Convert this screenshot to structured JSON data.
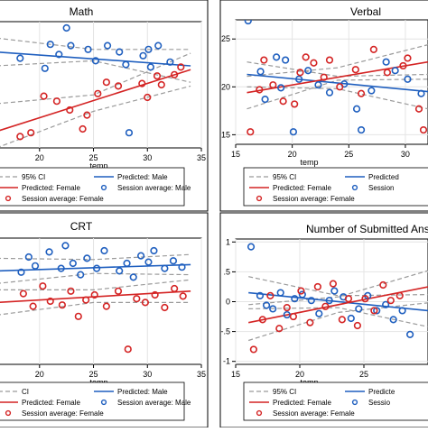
{
  "colors": {
    "male": "#1f5fbf",
    "female": "#d42424",
    "ci": "#9a9a9a",
    "frame": "#000000",
    "background": "#ffffff"
  },
  "chart_data": [
    {
      "id": "math",
      "type": "scatter",
      "title": "Math",
      "xlabel": "temp",
      "x_ticks": [
        20,
        25,
        30,
        35
      ],
      "y_ticks": [],
      "xlim": [
        16,
        35
      ],
      "ylim": [
        0,
        10
      ],
      "grid": true,
      "legend": {
        "placement": "bottom",
        "entries": [
          {
            "label": "95% CI",
            "kind": "ci"
          },
          {
            "label": "Predicted: Male",
            "kind": "male-line"
          },
          {
            "label": "Predicted: Female",
            "kind": "female-line"
          },
          {
            "label": "Session average: Male",
            "kind": "male-dot"
          },
          {
            "label": "Session average: Female",
            "kind": "female-dot"
          }
        ]
      },
      "series": [
        {
          "group": "male",
          "fit": [
            [
              16,
              7.6
            ],
            [
              34,
              6.5
            ]
          ],
          "ci_upper": [
            [
              16,
              8.7
            ],
            [
              25,
              7.8
            ],
            [
              34,
              7.8
            ]
          ],
          "ci_lower": [
            [
              16,
              6.5
            ],
            [
              25,
              6.9
            ],
            [
              34,
              5.2
            ]
          ],
          "points": [
            [
              18.2,
              7.1
            ],
            [
              20.5,
              6.3
            ],
            [
              21.0,
              8.2
            ],
            [
              21.8,
              7.4
            ],
            [
              22.5,
              9.5
            ],
            [
              22.9,
              8.1
            ],
            [
              24.5,
              7.8
            ],
            [
              25.2,
              6.9
            ],
            [
              26.3,
              8.1
            ],
            [
              27.4,
              7.6
            ],
            [
              28.0,
              6.6
            ],
            [
              28.3,
              1.2
            ],
            [
              29.6,
              7.3
            ],
            [
              30.1,
              7.8
            ],
            [
              30.3,
              6.4
            ],
            [
              31.0,
              8.1
            ],
            [
              32.1,
              6.8
            ]
          ]
        },
        {
          "group": "female",
          "fit": [
            [
              16,
              1.3
            ],
            [
              34,
              6.2
            ]
          ],
          "ci_upper": [
            [
              16,
              3.5
            ],
            [
              25,
              4.2
            ],
            [
              34,
              7.5
            ]
          ],
          "ci_lower": [
            [
              16,
              0.0
            ],
            [
              25,
              2.9
            ],
            [
              34,
              4.9
            ]
          ],
          "points": [
            [
              18.2,
              0.9
            ],
            [
              19.2,
              1.2
            ],
            [
              20.4,
              4.1
            ],
            [
              21.6,
              3.7
            ],
            [
              22.8,
              3.0
            ],
            [
              24.0,
              1.5
            ],
            [
              24.4,
              2.6
            ],
            [
              25.4,
              4.3
            ],
            [
              26.2,
              5.2
            ],
            [
              27.3,
              4.9
            ],
            [
              29.5,
              5.1
            ],
            [
              30.0,
              4.0
            ],
            [
              30.9,
              5.7
            ],
            [
              31.3,
              5.0
            ],
            [
              32.5,
              5.8
            ],
            [
              33.1,
              6.4
            ]
          ]
        }
      ]
    },
    {
      "id": "verbal",
      "type": "scatter",
      "title": "Verbal",
      "xlabel": "temp",
      "x_ticks": [
        15,
        20,
        25,
        30
      ],
      "y_ticks": [
        15,
        20,
        25
      ],
      "xlim": [
        15,
        32
      ],
      "ylim": [
        14,
        27
      ],
      "grid": true,
      "legend": {
        "placement": "bottom",
        "entries": [
          {
            "label": "95% CI",
            "kind": "ci"
          },
          {
            "label": "Predicted",
            "kind": "male-line"
          },
          {
            "label": "Predicted: Female",
            "kind": "female-line"
          },
          {
            "label": "Session",
            "kind": "male-dot"
          },
          {
            "label": "Session average: Female",
            "kind": "female-dot"
          }
        ]
      },
      "series": [
        {
          "group": "male",
          "fit": [
            [
              16,
              21.3
            ],
            [
              32,
              19.5
            ]
          ],
          "ci_upper": [
            [
              16,
              22.6
            ],
            [
              24,
              21.1
            ],
            [
              32,
              21.3
            ]
          ],
          "ci_lower": [
            [
              16,
              20.0
            ],
            [
              24,
              19.8
            ],
            [
              32,
              17.7
            ]
          ],
          "points": [
            [
              16.1,
              26.9
            ],
            [
              17.2,
              21.6
            ],
            [
              17.6,
              18.7
            ],
            [
              18.6,
              23.1
            ],
            [
              19.0,
              19.9
            ],
            [
              19.4,
              22.8
            ],
            [
              20.1,
              15.3
            ],
            [
              20.6,
              20.8
            ],
            [
              21.4,
              21.7
            ],
            [
              22.3,
              20.2
            ],
            [
              23.3,
              19.4
            ],
            [
              24.6,
              20.3
            ],
            [
              25.7,
              17.7
            ],
            [
              26.1,
              15.5
            ],
            [
              27.0,
              19.6
            ],
            [
              28.3,
              22.6
            ],
            [
              29.1,
              21.7
            ],
            [
              30.2,
              20.8
            ],
            [
              31.4,
              19.3
            ]
          ]
        },
        {
          "group": "female",
          "fit": [
            [
              16,
              19.4
            ],
            [
              32,
              22.6
            ]
          ],
          "ci_upper": [
            [
              16,
              21.1
            ],
            [
              24,
              22.0
            ],
            [
              32,
              24.4
            ]
          ],
          "ci_lower": [
            [
              16,
              17.7
            ],
            [
              24,
              20.7
            ],
            [
              32,
              20.8
            ]
          ],
          "points": [
            [
              16.3,
              15.3
            ],
            [
              17.1,
              19.7
            ],
            [
              17.5,
              22.8
            ],
            [
              18.3,
              20.2
            ],
            [
              19.2,
              18.5
            ],
            [
              20.2,
              18.2
            ],
            [
              20.7,
              21.5
            ],
            [
              21.2,
              23.1
            ],
            [
              21.9,
              22.5
            ],
            [
              22.8,
              21.0
            ],
            [
              23.3,
              22.8
            ],
            [
              24.2,
              20.0
            ],
            [
              25.6,
              21.8
            ],
            [
              26.1,
              19.3
            ],
            [
              27.2,
              23.9
            ],
            [
              28.4,
              21.5
            ],
            [
              29.8,
              22.2
            ],
            [
              30.2,
              23.0
            ],
            [
              31.2,
              17.7
            ],
            [
              31.6,
              15.5
            ]
          ]
        }
      ]
    },
    {
      "id": "crt",
      "type": "scatter",
      "title": "CRT",
      "xlabel": "temp",
      "x_ticks": [
        20,
        25,
        30,
        35
      ],
      "y_ticks": [],
      "xlim": [
        16,
        35
      ],
      "ylim": [
        0,
        10
      ],
      "grid": true,
      "legend": {
        "placement": "bottom",
        "entries": [
          {
            "label": "CI",
            "kind": "ci"
          },
          {
            "label": "Predicted: Male",
            "kind": "male-line"
          },
          {
            "label": "Predicted: Female",
            "kind": "female-line"
          },
          {
            "label": "Session average: Male",
            "kind": "male-dot"
          },
          {
            "label": "Session average: Female",
            "kind": "female-dot"
          }
        ]
      },
      "series": [
        {
          "group": "male",
          "fit": [
            [
              16,
              7.4
            ],
            [
              34,
              7.9
            ]
          ],
          "ci_upper": [
            [
              16,
              8.4
            ],
            [
              25,
              8.3
            ],
            [
              34,
              8.7
            ]
          ],
          "ci_lower": [
            [
              16,
              6.4
            ],
            [
              25,
              7.2
            ],
            [
              34,
              7.1
            ]
          ],
          "points": [
            [
              18.3,
              7.3
            ],
            [
              19.0,
              8.5
            ],
            [
              19.6,
              7.8
            ],
            [
              20.9,
              8.9
            ],
            [
              22.0,
              7.6
            ],
            [
              22.4,
              9.4
            ],
            [
              23.1,
              8.0
            ],
            [
              23.8,
              7.1
            ],
            [
              24.4,
              8.4
            ],
            [
              25.3,
              7.6
            ],
            [
              26.0,
              9.0
            ],
            [
              27.4,
              7.4
            ],
            [
              28.1,
              8.0
            ],
            [
              28.7,
              6.9
            ],
            [
              29.4,
              8.6
            ],
            [
              30.1,
              8.1
            ],
            [
              30.6,
              9.0
            ],
            [
              31.6,
              7.6
            ],
            [
              32.4,
              8.2
            ],
            [
              33.2,
              7.7
            ]
          ]
        },
        {
          "group": "female",
          "fit": [
            [
              16,
              4.9
            ],
            [
              34,
              5.8
            ]
          ],
          "ci_upper": [
            [
              16,
              5.9
            ],
            [
              25,
              5.9
            ],
            [
              34,
              6.7
            ]
          ],
          "ci_lower": [
            [
              16,
              3.9
            ],
            [
              25,
              4.9
            ],
            [
              34,
              4.9
            ]
          ],
          "points": [
            [
              18.5,
              5.6
            ],
            [
              19.4,
              4.6
            ],
            [
              20.3,
              6.2
            ],
            [
              21.0,
              5.0
            ],
            [
              22.1,
              4.7
            ],
            [
              22.9,
              5.8
            ],
            [
              23.6,
              3.8
            ],
            [
              24.3,
              5.1
            ],
            [
              25.1,
              5.5
            ],
            [
              26.2,
              4.6
            ],
            [
              27.3,
              5.8
            ],
            [
              28.2,
              1.2
            ],
            [
              29.0,
              5.2
            ],
            [
              29.8,
              4.9
            ],
            [
              30.7,
              5.5
            ],
            [
              31.6,
              4.5
            ],
            [
              32.5,
              6.0
            ],
            [
              33.3,
              5.4
            ]
          ]
        }
      ]
    },
    {
      "id": "submitted",
      "type": "scatter",
      "title": "Number of Submitted Answe",
      "xlabel": "temp",
      "x_ticks": [
        15,
        20,
        25
      ],
      "y_ticks": [
        -1,
        -0.5,
        0,
        0.5,
        1
      ],
      "y_tick_labels": [
        "-1",
        "-.5",
        "0",
        ".5",
        "1"
      ],
      "xlim": [
        15,
        30
      ],
      "ylim": [
        -1.05,
        1.05
      ],
      "grid": true,
      "legend": {
        "placement": "bottom",
        "entries": [
          {
            "label": "95% CI",
            "kind": "ci"
          },
          {
            "label": "Predicte",
            "kind": "male-line"
          },
          {
            "label": "Predicted: Female",
            "kind": "female-line"
          },
          {
            "label": "Sessio",
            "kind": "male-dot"
          },
          {
            "label": "Session average: Female",
            "kind": "female-dot"
          }
        ]
      },
      "series": [
        {
          "group": "male",
          "fit": [
            [
              16,
              0.15
            ],
            [
              30,
              -0.15
            ]
          ],
          "ci_upper": [
            [
              16,
              0.42
            ],
            [
              23,
              0.1
            ],
            [
              30,
              0.12
            ]
          ],
          "ci_lower": [
            [
              16,
              -0.12
            ],
            [
              23,
              -0.1
            ],
            [
              30,
              -0.42
            ]
          ],
          "points": [
            [
              16.2,
              0.92
            ],
            [
              16.9,
              0.1
            ],
            [
              17.4,
              -0.06
            ],
            [
              17.9,
              -0.12
            ],
            [
              18.5,
              0.15
            ],
            [
              19.0,
              -0.22
            ],
            [
              19.6,
              0.05
            ],
            [
              20.2,
              0.12
            ],
            [
              20.9,
              0.02
            ],
            [
              21.5,
              -0.2
            ],
            [
              22.3,
              0.02
            ],
            [
              22.7,
              0.18
            ],
            [
              23.4,
              0.08
            ],
            [
              24.0,
              -0.28
            ],
            [
              24.6,
              -0.12
            ],
            [
              25.3,
              0.1
            ],
            [
              26.0,
              -0.15
            ],
            [
              26.7,
              -0.05
            ],
            [
              27.3,
              -0.3
            ],
            [
              28.0,
              -0.15
            ],
            [
              28.6,
              -0.55
            ]
          ]
        },
        {
          "group": "female",
          "fit": [
            [
              16,
              -0.35
            ],
            [
              30,
              0.25
            ]
          ],
          "ci_upper": [
            [
              16,
              -0.05
            ],
            [
              23,
              0.08
            ],
            [
              30,
              0.52
            ]
          ],
          "ci_lower": [
            [
              16,
              -0.65
            ],
            [
              23,
              -0.18
            ],
            [
              30,
              -0.02
            ]
          ],
          "points": [
            [
              16.4,
              -0.8
            ],
            [
              17.1,
              -0.3
            ],
            [
              17.7,
              0.1
            ],
            [
              18.4,
              -0.45
            ],
            [
              19.0,
              -0.1
            ],
            [
              19.5,
              -0.25
            ],
            [
              20.1,
              0.18
            ],
            [
              20.8,
              -0.35
            ],
            [
              21.4,
              0.25
            ],
            [
              22.0,
              -0.08
            ],
            [
              22.6,
              0.3
            ],
            [
              23.3,
              -0.3
            ],
            [
              23.8,
              0.05
            ],
            [
              24.5,
              -0.4
            ],
            [
              25.1,
              0.05
            ],
            [
              25.8,
              -0.15
            ],
            [
              26.5,
              0.28
            ],
            [
              27.1,
              0.02
            ],
            [
              27.8,
              0.1
            ]
          ]
        }
      ]
    }
  ]
}
